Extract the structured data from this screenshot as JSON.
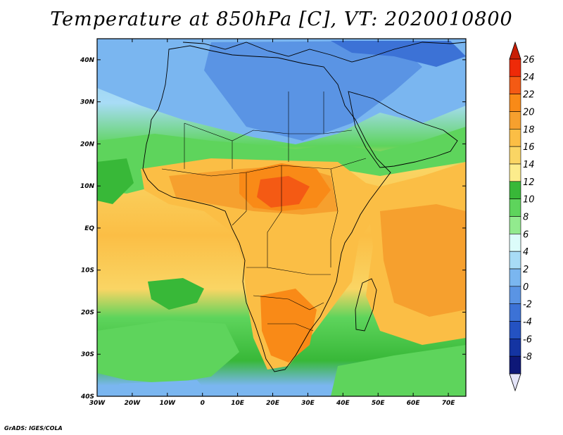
{
  "title": "Temperature at 850hPa [C], VT: 2020010800",
  "footer": "GrADS: IGES/COLA",
  "map": {
    "lon_range": [
      -30,
      75
    ],
    "lat_range": [
      -40,
      45
    ],
    "lon_ticks": [
      {
        "value": -30,
        "label": "30W"
      },
      {
        "value": -20,
        "label": "20W"
      },
      {
        "value": -10,
        "label": "10W"
      },
      {
        "value": 0,
        "label": "0"
      },
      {
        "value": 10,
        "label": "10E"
      },
      {
        "value": 20,
        "label": "20E"
      },
      {
        "value": 30,
        "label": "30E"
      },
      {
        "value": 40,
        "label": "40E"
      },
      {
        "value": 50,
        "label": "50E"
      },
      {
        "value": 60,
        "label": "60E"
      },
      {
        "value": 70,
        "label": "70E"
      }
    ],
    "lat_ticks": [
      {
        "value": 40,
        "label": "40N"
      },
      {
        "value": 30,
        "label": "30N"
      },
      {
        "value": 20,
        "label": "20N"
      },
      {
        "value": 10,
        "label": "10N"
      },
      {
        "value": 0,
        "label": "EQ"
      },
      {
        "value": -10,
        "label": "10S"
      },
      {
        "value": -20,
        "label": "20S"
      },
      {
        "value": -30,
        "label": "30S"
      },
      {
        "value": -40,
        "label": "40S"
      }
    ]
  },
  "colorbar": {
    "labels": [
      "26",
      "24",
      "22",
      "20",
      "18",
      "16",
      "14",
      "12",
      "10",
      "8",
      "6",
      "4",
      "2",
      "0",
      "-2",
      "-4",
      "-6",
      "-8"
    ],
    "colors": [
      "#ee2a08",
      "#f45a14",
      "#f98a17",
      "#f6a02e",
      "#fbbe45",
      "#fad564",
      "#fcec8c",
      "#38b838",
      "#5ed45c",
      "#92ea8e",
      "#dcfcfa",
      "#a8dcf6",
      "#7ab6f0",
      "#5a94e4",
      "#3c72d6",
      "#2452c2",
      "#1434a2",
      "#0e1878"
    ],
    "top_arrow_color": "#c81e06",
    "bottom_arrow_color": "#e4e4f8"
  }
}
